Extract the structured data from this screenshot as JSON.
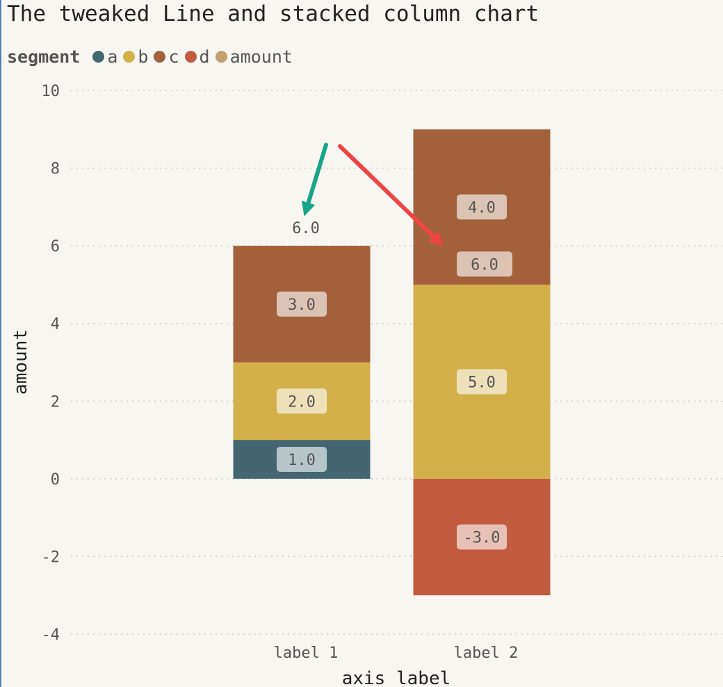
{
  "title": "The tweaked Line and stacked column chart",
  "legend": {
    "title": "segment",
    "items": [
      {
        "label": "a",
        "color": "#436670"
      },
      {
        "label": "b",
        "color": "#d3b04a"
      },
      {
        "label": "c",
        "color": "#a2613a"
      },
      {
        "label": "d",
        "color": "#c25b3f"
      },
      {
        "label": "amount",
        "color": "#c4a070"
      }
    ]
  },
  "chart_data": {
    "type": "bar",
    "stacked": true,
    "categories": [
      "label 1",
      "label 2"
    ],
    "series": [
      {
        "name": "a",
        "values": [
          1.0,
          null
        ],
        "labels": [
          "1.0",
          ""
        ]
      },
      {
        "name": "b",
        "values": [
          2.0,
          5.0
        ],
        "labels": [
          "2.0",
          "5.0"
        ]
      },
      {
        "name": "c",
        "values": [
          3.0,
          4.0
        ],
        "labels": [
          "3.0",
          "4.0"
        ]
      },
      {
        "name": "d",
        "values": [
          null,
          -3.0
        ],
        "labels": [
          "",
          "-3.0"
        ]
      }
    ],
    "totals": [
      6.0,
      6.0
    ],
    "total_labels": [
      "6.0",
      "6.0"
    ],
    "xlabel": "axis label",
    "ylabel": "amount",
    "ylim": [
      -4,
      10
    ],
    "yticks": [
      10,
      8,
      6,
      4,
      2,
      0,
      -2,
      -4
    ],
    "grid": true,
    "annotations": [
      {
        "type": "arrow",
        "color": "#17a589",
        "points_to": "label 1 total"
      },
      {
        "type": "arrow",
        "color": "#ef4444",
        "points_to": "label 2 total"
      }
    ]
  }
}
